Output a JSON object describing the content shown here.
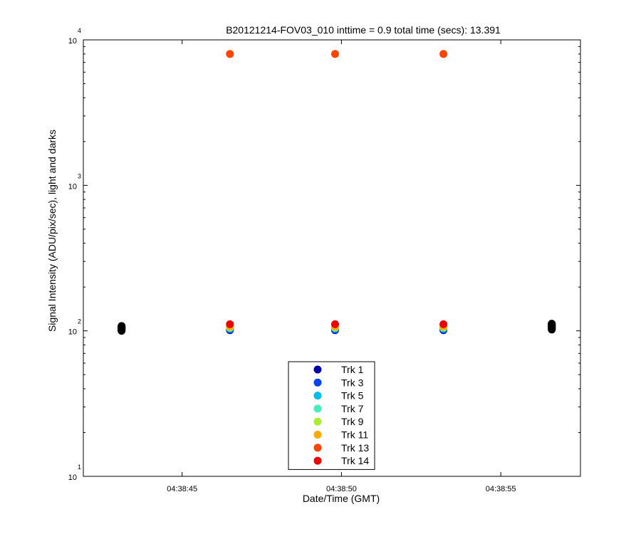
{
  "chart_data": {
    "type": "scatter",
    "title": "B20121214-FOV03_010 inttime = 0.9 total time (secs): 13.391",
    "xlabel": "Date/Time (GMT)",
    "ylabel": "Signal Intensity (ADU/pix/sec), light and darks",
    "yscale": "log",
    "ylim": [
      10,
      10000
    ],
    "xlim": [
      "04:38:41.9",
      "04:38:57.5"
    ],
    "x_ticks": [
      "04:38:45",
      "04:38:50",
      "04:38:55"
    ],
    "y_ticks": [
      {
        "base": "10",
        "exp": "1"
      },
      {
        "base": "10",
        "exp": "2"
      },
      {
        "base": "10",
        "exp": "3"
      },
      {
        "base": "10",
        "exp": "4"
      }
    ],
    "grid": false,
    "legend_position": "bottom-center",
    "series": [
      {
        "name": "Trk 1",
        "color": "#0000aa",
        "x": [
          "04:38:46.5",
          "04:38:49.8",
          "04:38:53.2"
        ],
        "y": [
          101,
          101,
          101
        ]
      },
      {
        "name": "Trk 3",
        "color": "#0044ee",
        "x": [
          "04:38:46.5",
          "04:38:49.8",
          "04:38:53.2"
        ],
        "y": [
          102,
          102,
          102
        ]
      },
      {
        "name": "Trk 5",
        "color": "#00bbee",
        "x": [
          "04:38:46.5",
          "04:38:49.8",
          "04:38:53.2"
        ],
        "y": [
          104,
          104,
          104
        ]
      },
      {
        "name": "Trk 7",
        "color": "#44eebb",
        "x": [
          "04:38:46.5",
          "04:38:49.8",
          "04:38:53.2"
        ],
        "y": [
          105,
          105,
          105
        ]
      },
      {
        "name": "Trk 9",
        "color": "#aaee33",
        "x": [
          "04:38:46.5",
          "04:38:49.8",
          "04:38:53.2"
        ],
        "y": [
          106,
          106,
          106
        ]
      },
      {
        "name": "Trk 11",
        "color": "#ffaa00",
        "x": [
          "04:38:46.5",
          "04:38:49.8",
          "04:38:53.2"
        ],
        "y": [
          107,
          107,
          107
        ]
      },
      {
        "name": "Trk 13",
        "color": "#ff4400",
        "x": [
          "04:38:46.5",
          "04:38:49.8",
          "04:38:53.2"
        ],
        "y": [
          8000,
          8000,
          8000
        ]
      },
      {
        "name": "Trk 14",
        "color": "#ee0000",
        "x": [
          "04:38:46.5",
          "04:38:49.8",
          "04:38:53.2"
        ],
        "y": [
          111,
          111,
          111
        ]
      }
    ],
    "darks": {
      "color": "#000000",
      "x": [
        "04:38:43.1",
        "04:38:56.6"
      ],
      "y": [
        [
          100,
          101,
          102,
          103,
          104,
          105,
          106,
          107,
          108
        ],
        [
          102,
          103,
          104,
          105,
          106,
          107,
          108,
          109,
          110,
          111,
          112
        ]
      ]
    }
  }
}
